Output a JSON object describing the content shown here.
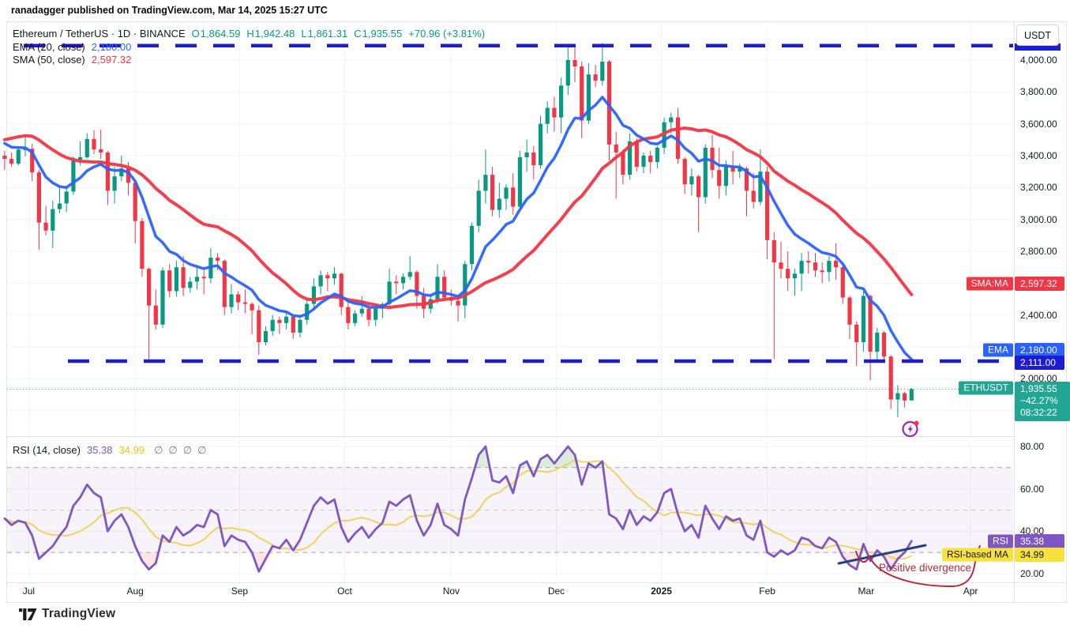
{
  "attribution": "ranadagger published on TradingView.com, Mar 14, 2025 15:27 UTC",
  "symbol_legend": {
    "title_line": "Ethereum / TetherUS · 1D · BINANCE",
    "ohlc": [
      {
        "k": "O",
        "v": "1,864.59"
      },
      {
        "k": "H",
        "v": "1,942.48"
      },
      {
        "k": "L",
        "v": "1,861.31"
      },
      {
        "k": "C",
        "v": "1,935.55"
      }
    ],
    "change": "+70.96 (+3.81%)"
  },
  "ema_legend": {
    "label": "EMA (20, close)",
    "value": "2,180.00"
  },
  "sma_legend": {
    "label": "SMA (50, close)",
    "value": "2,597.32"
  },
  "rsi_legend": {
    "label": "RSI (14, close)",
    "value": "35.38",
    "ma_value": "34.99",
    "empty_slots": [
      "∅",
      "∅",
      "∅",
      "∅"
    ]
  },
  "axis": {
    "currency_button": "USDT",
    "price_ticks": [
      {
        "label": "4,000.00",
        "p": 4000
      },
      {
        "label": "3,800.00",
        "p": 3800
      },
      {
        "label": "3,600.00",
        "p": 3600
      },
      {
        "label": "3,400.00",
        "p": 3400
      },
      {
        "label": "3,200.00",
        "p": 3200
      },
      {
        "label": "3,000.00",
        "p": 3000
      },
      {
        "label": "2,800.00",
        "p": 2800
      },
      {
        "label": "2,400.00",
        "p": 2400
      },
      {
        "label": "2,000.00",
        "p": 2000
      }
    ],
    "rsi_ticks": [
      {
        "label": "80.00",
        "v": 80
      },
      {
        "label": "60.00",
        "v": 60
      },
      {
        "label": "40.00",
        "v": 40
      },
      {
        "label": "20.00",
        "v": 20
      }
    ],
    "tags": {
      "sma": {
        "label": "SMA:MA",
        "value": "2,597.32",
        "color": "#f23645"
      },
      "ema": {
        "label": "EMA",
        "value": "2,180.00",
        "color": "#2962ff"
      },
      "support": {
        "value": "2,111.00",
        "color": "#1d1ccf"
      },
      "last": {
        "label": "ETHUSDT",
        "value": "1,935.55",
        "change": "−42.27%",
        "countdown": "08:32:22",
        "color": "#22a693"
      },
      "rsi": {
        "label": "RSI",
        "value": "35.38",
        "color": "#7e57c2"
      },
      "rsi_ma": {
        "label": "RSI-based MA",
        "value": "34.99",
        "color": "#f6e13d"
      }
    }
  },
  "time_axis": {
    "months": [
      {
        "label": "Jul",
        "i": 0.5
      },
      {
        "label": "Aug",
        "i": 16
      },
      {
        "label": "Sep",
        "i": 31.2
      },
      {
        "label": "Oct",
        "i": 46.5
      },
      {
        "label": "Nov",
        "i": 62
      },
      {
        "label": "Dec",
        "i": 77.3
      },
      {
        "label": "2025",
        "i": 92.6,
        "b": 1
      },
      {
        "label": "Feb",
        "i": 108
      },
      {
        "label": "Mar",
        "i": 122.4
      },
      {
        "label": "Apr",
        "i": 137.6
      }
    ]
  },
  "annotations": {
    "divergence": "Positive divergence"
  },
  "footer": {
    "brand": "TradingView"
  },
  "chart_data": [
    {
      "type": "candlestick",
      "symbol": "ETHUSDT",
      "exchange": "BINANCE",
      "interval": "1D",
      "range": "late Jun 2024 – Mar 14 2025, ~2 days per plotted bar",
      "up_color": "#089981",
      "down_color": "#f23645",
      "ylim": [
        1650,
        4150
      ],
      "price_grid_step": 200,
      "levels": {
        "resistance_dashed": 4090,
        "support_dashed": 2111,
        "last_price": 1935.55,
        "dashed_color": "#1d1ccf"
      },
      "overlays": [
        {
          "name": "EMA (20, close)",
          "color": "#2962ff",
          "period_bars": 10,
          "last_value": 2180.0
        },
        {
          "name": "SMA (50, close)",
          "color": "#f23645",
          "period_bars": 25,
          "last_value": 2597.32
        }
      ],
      "pre_ohlc": [
        [
          3400,
          3430,
          3310,
          3380
        ],
        [
          3380,
          3420,
          3330,
          3350
        ],
        [
          3350,
          3460,
          3340,
          3438
        ]
      ],
      "pre_closes": [
        3050,
        3120,
        3200,
        3280,
        3380,
        3560,
        3740,
        3800,
        3780,
        3720,
        3680,
        3650,
        3560,
        3500,
        3440,
        3400,
        3420,
        3480,
        3520,
        3450,
        3400,
        3440,
        3500,
        3540,
        3560
      ],
      "ohlc": [
        [
          3438,
          3530,
          3395,
          3443
        ],
        [
          3443,
          3475,
          3240,
          3295
        ],
        [
          3295,
          3310,
          2810,
          2980
        ],
        [
          2980,
          3085,
          2900,
          2930
        ],
        [
          2930,
          3120,
          2820,
          3065
        ],
        [
          3065,
          3215,
          3040,
          3100
        ],
        [
          3100,
          3210,
          3045,
          3175
        ],
        [
          3175,
          3395,
          3155,
          3375
        ],
        [
          3375,
          3490,
          3340,
          3390
        ],
        [
          3390,
          3540,
          3380,
          3505
        ],
        [
          3505,
          3560,
          3410,
          3440
        ],
        [
          3440,
          3565,
          3380,
          3420
        ],
        [
          3420,
          3430,
          3090,
          3180
        ],
        [
          3180,
          3330,
          3100,
          3270
        ],
        [
          3270,
          3400,
          3240,
          3320
        ],
        [
          3320,
          3360,
          3150,
          3230
        ],
        [
          3230,
          3240,
          2850,
          2990
        ],
        [
          2990,
          3010,
          2640,
          2690
        ],
        [
          2690,
          2700,
          2110,
          2460
        ],
        [
          2460,
          2560,
          2310,
          2340
        ],
        [
          2340,
          2700,
          2320,
          2680
        ],
        [
          2680,
          2720,
          2510,
          2550
        ],
        [
          2550,
          2740,
          2515,
          2700
        ],
        [
          2700,
          2770,
          2520,
          2570
        ],
        [
          2570,
          2640,
          2540,
          2610
        ],
        [
          2610,
          2700,
          2560,
          2640
        ],
        [
          2640,
          2680,
          2530,
          2630
        ],
        [
          2630,
          2820,
          2600,
          2760
        ],
        [
          2760,
          2790,
          2680,
          2740
        ],
        [
          2740,
          2750,
          2400,
          2450
        ],
        [
          2450,
          2595,
          2410,
          2530
        ],
        [
          2530,
          2550,
          2430,
          2480
        ],
        [
          2480,
          2560,
          2410,
          2470
        ],
        [
          2470,
          2480,
          2280,
          2430
        ],
        [
          2430,
          2460,
          2150,
          2230
        ],
        [
          2230,
          2330,
          2210,
          2300
        ],
        [
          2300,
          2400,
          2270,
          2370
        ],
        [
          2370,
          2390,
          2280,
          2350
        ],
        [
          2350,
          2420,
          2310,
          2390
        ],
        [
          2390,
          2400,
          2250,
          2290
        ],
        [
          2290,
          2390,
          2260,
          2370
        ],
        [
          2370,
          2490,
          2340,
          2470
        ],
        [
          2470,
          2630,
          2440,
          2580
        ],
        [
          2580,
          2680,
          2530,
          2650
        ],
        [
          2650,
          2670,
          2550,
          2630
        ],
        [
          2630,
          2700,
          2590,
          2660
        ],
        [
          2660,
          2665,
          2400,
          2450
        ],
        [
          2450,
          2500,
          2310,
          2350
        ],
        [
          2350,
          2430,
          2330,
          2410
        ],
        [
          2410,
          2520,
          2390,
          2440
        ],
        [
          2440,
          2470,
          2330,
          2370
        ],
        [
          2370,
          2470,
          2330,
          2440
        ],
        [
          2440,
          2480,
          2380,
          2470
        ],
        [
          2470,
          2690,
          2440,
          2610
        ],
        [
          2610,
          2650,
          2530,
          2600
        ],
        [
          2600,
          2660,
          2560,
          2640
        ],
        [
          2640,
          2770,
          2620,
          2670
        ],
        [
          2670,
          2680,
          2440,
          2520
        ],
        [
          2520,
          2570,
          2380,
          2440
        ],
        [
          2440,
          2530,
          2410,
          2500
        ],
        [
          2500,
          2720,
          2470,
          2640
        ],
        [
          2640,
          2680,
          2500,
          2510
        ],
        [
          2510,
          2560,
          2460,
          2490
        ],
        [
          2490,
          2500,
          2360,
          2460
        ],
        [
          2460,
          2740,
          2380,
          2720
        ],
        [
          2720,
          2980,
          2680,
          2960
        ],
        [
          2960,
          3250,
          2920,
          3180
        ],
        [
          3180,
          3440,
          3100,
          3280
        ],
        [
          3280,
          3330,
          3020,
          3060
        ],
        [
          3060,
          3230,
          3010,
          3130
        ],
        [
          3130,
          3220,
          3060,
          3200
        ],
        [
          3200,
          3290,
          3030,
          3080
        ],
        [
          3080,
          3430,
          3050,
          3390
        ],
        [
          3390,
          3500,
          3300,
          3420
        ],
        [
          3420,
          3460,
          3250,
          3340
        ],
        [
          3340,
          3650,
          3320,
          3600
        ],
        [
          3600,
          3740,
          3540,
          3700
        ],
        [
          3700,
          3770,
          3550,
          3640
        ],
        [
          3640,
          3890,
          3540,
          3840
        ],
        [
          3840,
          4090,
          3780,
          4000
        ],
        [
          4000,
          4080,
          3860,
          3960
        ],
        [
          3960,
          3990,
          3510,
          3620
        ],
        [
          3620,
          3980,
          3600,
          3910
        ],
        [
          3910,
          3970,
          3830,
          3870
        ],
        [
          3870,
          4107,
          3840,
          3990
        ],
        [
          3990,
          4000,
          3370,
          3470
        ],
        [
          3470,
          3550,
          3130,
          3420
        ],
        [
          3420,
          3440,
          3220,
          3280
        ],
        [
          3280,
          3540,
          3250,
          3490
        ],
        [
          3490,
          3510,
          3300,
          3330
        ],
        [
          3330,
          3420,
          3290,
          3400
        ],
        [
          3400,
          3430,
          3290,
          3360
        ],
        [
          3360,
          3460,
          3320,
          3450
        ],
        [
          3450,
          3640,
          3410,
          3610
        ],
        [
          3610,
          3670,
          3540,
          3640
        ],
        [
          3640,
          3700,
          3350,
          3380
        ],
        [
          3380,
          3390,
          3160,
          3220
        ],
        [
          3220,
          3320,
          3150,
          3270
        ],
        [
          3270,
          3280,
          2920,
          3140
        ],
        [
          3140,
          3470,
          3100,
          3450
        ],
        [
          3450,
          3530,
          3260,
          3310
        ],
        [
          3310,
          3450,
          3130,
          3210
        ],
        [
          3210,
          3370,
          3150,
          3330
        ],
        [
          3330,
          3430,
          3220,
          3300
        ],
        [
          3300,
          3350,
          3260,
          3320
        ],
        [
          3320,
          3330,
          3020,
          3180
        ],
        [
          3180,
          3290,
          3070,
          3110
        ],
        [
          3110,
          3440,
          3090,
          3300
        ],
        [
          3300,
          3330,
          2750,
          2870
        ],
        [
          2870,
          2920,
          2125,
          2730
        ],
        [
          2730,
          2860,
          2630,
          2690
        ],
        [
          2690,
          2800,
          2550,
          2630
        ],
        [
          2630,
          2690,
          2520,
          2660
        ],
        [
          2660,
          2790,
          2550,
          2740
        ],
        [
          2740,
          2800,
          2660,
          2730
        ],
        [
          2730,
          2790,
          2640,
          2680
        ],
        [
          2680,
          2730,
          2600,
          2670
        ],
        [
          2670,
          2770,
          2610,
          2740
        ],
        [
          2740,
          2850,
          2620,
          2700
        ],
        [
          2700,
          2710,
          2470,
          2510
        ],
        [
          2510,
          2520,
          2250,
          2340
        ],
        [
          2340,
          2360,
          2080,
          2230
        ],
        [
          2230,
          2550,
          2170,
          2520
        ],
        [
          2520,
          2530,
          1990,
          2170
        ],
        [
          2170,
          2320,
          2110,
          2290
        ],
        [
          2290,
          2300,
          2100,
          2140
        ],
        [
          2140,
          2150,
          1810,
          1870
        ],
        [
          1870,
          1960,
          1760,
          1910
        ],
        [
          1910,
          1920,
          1820,
          1864
        ],
        [
          1864.59,
          1942.48,
          1861.31,
          1935.55
        ]
      ]
    },
    {
      "type": "line",
      "name": "RSI (14, close)",
      "color": "#7e57c2",
      "last_value": 35.38,
      "ma": {
        "name": "RSI-based MA",
        "color": "#f0d35f",
        "period_bars": 9,
        "last_value": 34.99
      },
      "band": [
        30,
        70
      ],
      "mid_level": 50,
      "ylim": [
        15,
        85
      ],
      "pre_values": [
        46,
        43,
        45
      ],
      "values": [
        44,
        38,
        27,
        30,
        33,
        38,
        42,
        52,
        56,
        62,
        58,
        56,
        40,
        45,
        48,
        42,
        33,
        26,
        22,
        25,
        38,
        35,
        42,
        38,
        40,
        43,
        42,
        50,
        48,
        33,
        38,
        36,
        35,
        30,
        21,
        27,
        33,
        32,
        36,
        31,
        36,
        44,
        52,
        56,
        53,
        55,
        42,
        35,
        39,
        42,
        37,
        41,
        44,
        54,
        52,
        55,
        57,
        45,
        38,
        43,
        53,
        43,
        41,
        38,
        55,
        65,
        76,
        80,
        64,
        63,
        66,
        58,
        71,
        73,
        66,
        74,
        76,
        72,
        76,
        80,
        76,
        62,
        72,
        70,
        73,
        48,
        46,
        41,
        50,
        43,
        47,
        45,
        49,
        58,
        60,
        48,
        40,
        43,
        37,
        52,
        46,
        41,
        47,
        45,
        46,
        38,
        36,
        45,
        30,
        28,
        31,
        29,
        31,
        37,
        36,
        33,
        32,
        37,
        35,
        28,
        24,
        22,
        34,
        26,
        31,
        28,
        22,
        27,
        30,
        35.38
      ],
      "annotations": [
        {
          "type": "text",
          "text": "Positive divergence",
          "color": "#b42b38"
        },
        {
          "type": "trendline",
          "color": "#274084",
          "note": "rising support line under final RSI lows"
        }
      ]
    }
  ]
}
